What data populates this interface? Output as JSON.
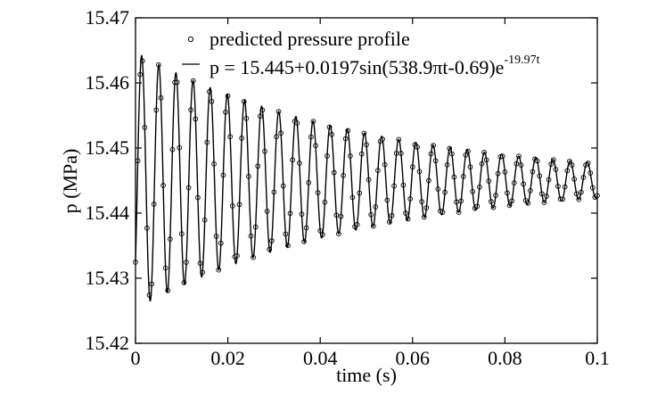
{
  "chart_data": {
    "type": "line",
    "title": "",
    "xlabel": "time (s)",
    "ylabel": "p (MPa)",
    "xlim": [
      0,
      0.1
    ],
    "ylim": [
      15.42,
      15.47
    ],
    "x_ticks": [
      0,
      0.02,
      0.04,
      0.06,
      0.08,
      0.1
    ],
    "x_tick_labels": [
      "0",
      "0.02",
      "0.04",
      "0.06",
      "0.08",
      "0.1"
    ],
    "y_ticks": [
      15.42,
      15.43,
      15.44,
      15.45,
      15.46,
      15.47
    ],
    "y_tick_labels": [
      "15.42",
      "15.43",
      "15.44",
      "15.45",
      "15.46",
      "15.47"
    ],
    "grid": false,
    "legend_position": "top",
    "model": {
      "offset": 15.445,
      "amplitude": 0.0197,
      "angular_coefficient_pi": 538.9,
      "phase": -0.69,
      "decay_rate": 19.97,
      "t_start": 0,
      "t_end": 0.1,
      "marker_step": 0.0005
    },
    "series": [
      {
        "name": "predicted pressure profile",
        "style": "markers",
        "marker": "open-circle",
        "color": "#000000"
      },
      {
        "name": "p = 15.445+0.0197sin(538.9πt-0.69)e",
        "name_superscript": "-19.97t",
        "style": "line",
        "color": "#000000"
      }
    ]
  }
}
